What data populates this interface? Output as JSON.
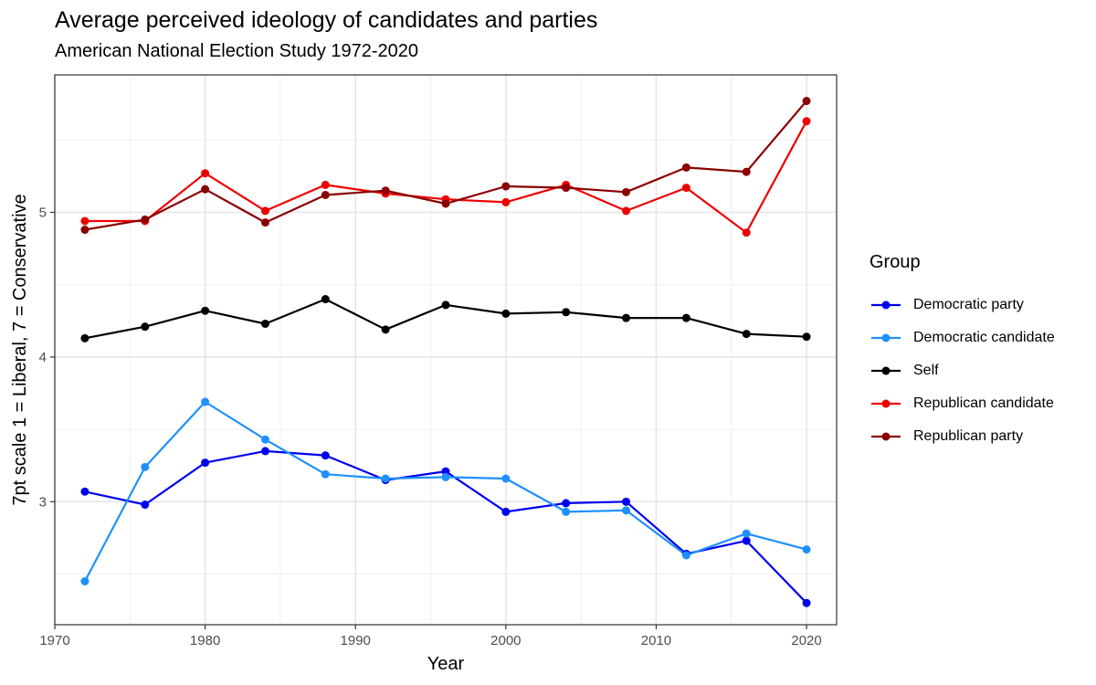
{
  "chart_data": {
    "type": "line",
    "title": "Average perceived ideology of candidates and parties",
    "subtitle": "American National Election Study 1972-2020",
    "xlabel": "Year",
    "ylabel": "7pt scale 1 = Liberal, 7 = Conservative",
    "xlim": [
      1970,
      2022
    ],
    "ylim": [
      2.15,
      5.95
    ],
    "x_ticks": [
      1970,
      1980,
      1990,
      2000,
      2010,
      2020
    ],
    "y_ticks": [
      3,
      4,
      5
    ],
    "grid": true,
    "legend_title": "Group",
    "legend_position": "right",
    "x": [
      1972,
      1976,
      1980,
      1984,
      1988,
      1992,
      1996,
      2000,
      2004,
      2008,
      2012,
      2016,
      2020
    ],
    "series": [
      {
        "name": "Democratic party",
        "color": "#0000ee",
        "values": [
          3.07,
          2.98,
          3.27,
          3.35,
          3.32,
          3.15,
          3.21,
          2.93,
          2.99,
          3.0,
          2.64,
          2.73,
          2.3
        ]
      },
      {
        "name": "Democratic candidate",
        "color": "#1e90ff",
        "values": [
          2.45,
          3.24,
          3.69,
          3.43,
          3.19,
          3.16,
          3.17,
          3.16,
          2.93,
          2.94,
          2.63,
          2.78,
          2.67
        ]
      },
      {
        "name": "Self",
        "color": "#000000",
        "values": [
          4.13,
          4.21,
          4.32,
          4.23,
          4.4,
          4.19,
          4.36,
          4.3,
          4.31,
          4.27,
          4.27,
          4.16,
          4.14
        ]
      },
      {
        "name": "Republican candidate",
        "color": "#ee0000",
        "values": [
          4.94,
          4.94,
          5.27,
          5.01,
          5.19,
          5.13,
          5.09,
          5.07,
          5.19,
          5.01,
          5.17,
          4.86,
          5.63
        ]
      },
      {
        "name": "Republican party",
        "color": "#8b0000",
        "values": [
          4.88,
          4.95,
          5.16,
          4.93,
          5.12,
          5.15,
          5.06,
          5.18,
          5.17,
          5.14,
          5.31,
          5.28,
          5.77
        ]
      }
    ]
  }
}
